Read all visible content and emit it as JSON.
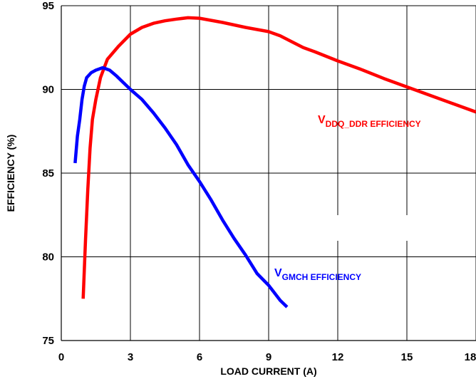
{
  "chart_data": {
    "type": "line",
    "xlabel": "LOAD CURRENT (A)",
    "ylabel": "EFFICIENCY (%)",
    "xlim": [
      0,
      18
    ],
    "ylim": [
      75,
      95
    ],
    "xticks": [
      "0",
      "3",
      "6",
      "9",
      "12",
      "15",
      "18"
    ],
    "yticks": [
      "75",
      "80",
      "85",
      "90",
      "95"
    ],
    "grid": true,
    "series": [
      {
        "name_main": "V",
        "name_sub": "DDQ_DDR",
        "name_suffix": " EFFICIENCY",
        "color": "#ff0000",
        "x": [
          0.95,
          1.05,
          1.15,
          1.25,
          1.35,
          1.5,
          1.7,
          2.0,
          2.5,
          3.0,
          3.5,
          4.0,
          4.5,
          5.0,
          5.5,
          6.0,
          7.0,
          8.0,
          9.0,
          9.5,
          10.0,
          10.5,
          11.0,
          12.0,
          13.0,
          14.0,
          15.0,
          16.0,
          17.0,
          18.0
        ],
        "y": [
          77.5,
          81.0,
          84.0,
          86.5,
          88.2,
          89.4,
          90.7,
          91.8,
          92.6,
          93.3,
          93.7,
          93.95,
          94.1,
          94.2,
          94.28,
          94.25,
          94.0,
          93.7,
          93.45,
          93.2,
          92.85,
          92.5,
          92.25,
          91.7,
          91.2,
          90.65,
          90.15,
          89.65,
          89.15,
          88.65
        ]
      },
      {
        "name_main": "V",
        "name_sub": "GMCH",
        "name_suffix": " EFFICIENCY",
        "color": "#0000ff",
        "x": [
          0.6,
          0.7,
          0.8,
          0.9,
          1.0,
          1.1,
          1.3,
          1.5,
          1.8,
          2.1,
          2.4,
          2.7,
          3.0,
          3.5,
          4.0,
          4.5,
          5.0,
          5.5,
          6.0,
          6.5,
          7.0,
          7.5,
          8.0,
          8.5,
          9.0,
          9.5,
          9.8
        ],
        "y": [
          85.6,
          87.2,
          88.2,
          89.4,
          90.2,
          90.7,
          91.0,
          91.15,
          91.3,
          91.15,
          90.8,
          90.4,
          90.0,
          89.4,
          88.6,
          87.7,
          86.7,
          85.5,
          84.5,
          83.4,
          82.2,
          81.1,
          80.1,
          79.0,
          78.3,
          77.4,
          77.0
        ]
      }
    ]
  }
}
